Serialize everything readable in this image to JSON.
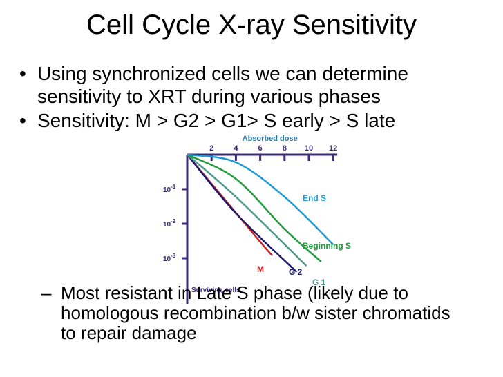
{
  "slide": {
    "title": "Cell Cycle X-ray Sensitivity",
    "bullets": [
      [
        "Using synchronized cells we can determine",
        "sensitivity to XRT during various phases"
      ],
      [
        "Sensitivity: M > G2 > G1> S early > S late"
      ]
    ],
    "sub_bullet": [
      "Most resistant in Late S phase (likely due to",
      "homologous recombination b/w sister chromatids",
      "to repair damage"
    ],
    "bullet_glyph": "•",
    "dash_glyph": "–"
  },
  "chart_data": {
    "type": "line",
    "xlabel": "Absorbed dose",
    "ylabel": "Surviving cells",
    "x_ticks": [
      2,
      4,
      6,
      8,
      10,
      12
    ],
    "xlim": [
      0,
      12
    ],
    "y_ticks": [
      {
        "base": "10",
        "exp": "-1",
        "value": 0.1
      },
      {
        "base": "10",
        "exp": "-2",
        "value": 0.01
      },
      {
        "base": "10",
        "exp": "-3",
        "value": 0.001
      }
    ],
    "y_scale": "log",
    "series": [
      {
        "name": "M",
        "color": "#cc2222",
        "points": [
          [
            0,
            1.0
          ],
          [
            6.0,
            0.003
          ],
          [
            7.0,
            0.0012
          ]
        ]
      },
      {
        "name": "G 2",
        "color": "#1a1a6e",
        "points": [
          [
            0,
            1.0
          ],
          [
            4.0,
            0.02
          ],
          [
            9.0,
            0.0004
          ]
        ]
      },
      {
        "name": "G 1",
        "color": "#4c9a8c",
        "points": [
          [
            0,
            1.0
          ],
          [
            4.0,
            0.06
          ],
          [
            9.8,
            0.0006
          ]
        ]
      },
      {
        "name": "Beginning S",
        "color": "#1f9a3c",
        "points": [
          [
            0,
            1.0
          ],
          [
            4.0,
            0.2
          ],
          [
            8.0,
            0.007
          ],
          [
            11.0,
            0.0008
          ]
        ]
      },
      {
        "name": "End S",
        "color": "#1a9ad6",
        "points": [
          [
            0,
            1.0
          ],
          [
            4.0,
            0.6
          ],
          [
            8.0,
            0.06
          ],
          [
            12.0,
            0.0025
          ]
        ]
      }
    ]
  }
}
